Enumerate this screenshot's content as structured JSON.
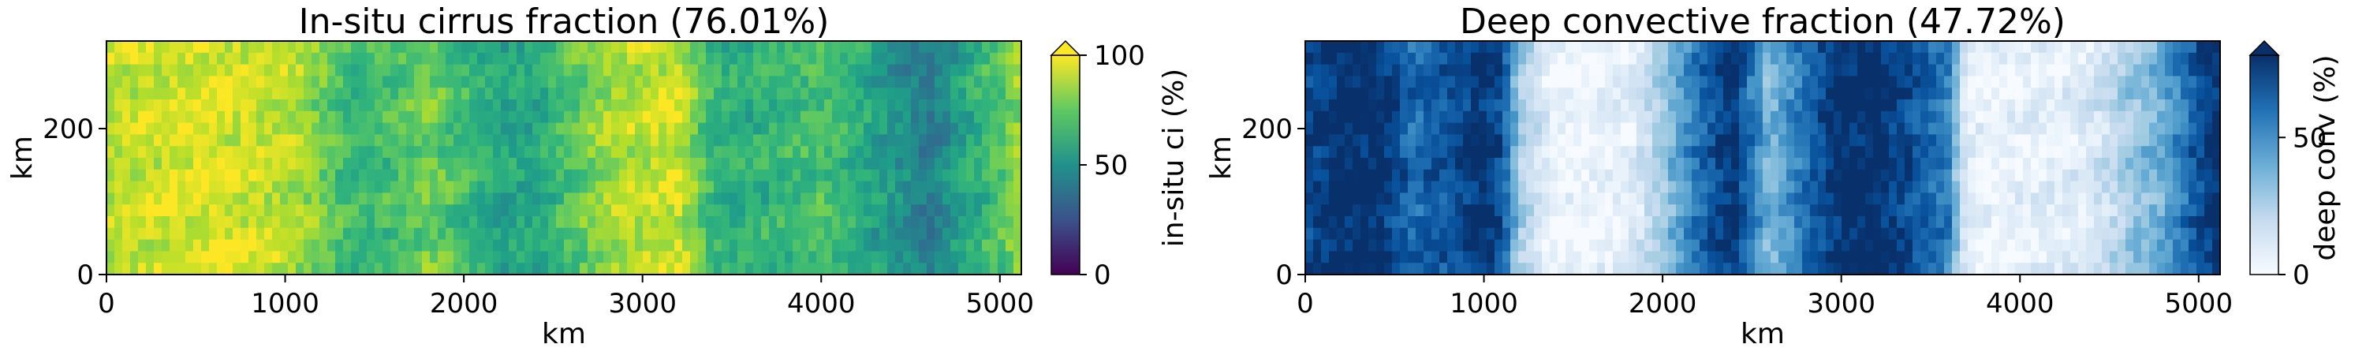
{
  "chart_data": [
    {
      "type": "heatmap",
      "title": "In-situ cirrus fraction (76.01%)",
      "xlabel": "km",
      "ylabel": "km",
      "xlim": [
        0,
        5120
      ],
      "ylim": [
        0,
        320
      ],
      "xticks": [
        0,
        1000,
        2000,
        3000,
        4000,
        5000
      ],
      "yticks": [
        0,
        200
      ],
      "colormap": "viridis",
      "colorbar": {
        "label": "in-situ ci (%)",
        "range": [
          0,
          100
        ],
        "ticks": [
          0,
          50,
          100
        ],
        "extend": "max"
      },
      "column_profile": {
        "x": [
          0,
          200,
          400,
          600,
          800,
          1000,
          1200,
          1400,
          1600,
          1800,
          2000,
          2200,
          2400,
          2600,
          2800,
          3000,
          3200,
          3400,
          3600,
          3800,
          4000,
          4200,
          4400,
          4600,
          4800,
          5000,
          5120
        ],
        "values": [
          88,
          92,
          95,
          95,
          93,
          90,
          80,
          65,
          70,
          78,
          68,
          58,
          60,
          72,
          86,
          90,
          92,
          65,
          62,
          66,
          72,
          62,
          52,
          42,
          58,
          72,
          85
        ]
      }
    },
    {
      "type": "heatmap",
      "title": "Deep convective fraction (47.72%)",
      "xlabel": "km",
      "ylabel": "km",
      "xlim": [
        0,
        5120
      ],
      "ylim": [
        0,
        320
      ],
      "xticks": [
        0,
        1000,
        2000,
        3000,
        4000,
        5000
      ],
      "yticks": [
        0,
        200
      ],
      "colormap": "Blues",
      "colorbar": {
        "label": "deep conv (%)",
        "range": [
          0,
          80
        ],
        "ticks": [
          0,
          50
        ],
        "extend": "max"
      },
      "column_profile": {
        "x": [
          0,
          200,
          400,
          600,
          800,
          1000,
          1100,
          1200,
          1400,
          1600,
          1800,
          2000,
          2200,
          2400,
          2600,
          2800,
          3000,
          3200,
          3400,
          3600,
          3700,
          3800,
          4000,
          4200,
          4400,
          4600,
          4800,
          5000,
          5120
        ],
        "values": [
          72,
          82,
          82,
          62,
          70,
          80,
          70,
          28,
          4,
          3,
          6,
          30,
          60,
          80,
          35,
          62,
          82,
          82,
          70,
          55,
          8,
          4,
          6,
          8,
          12,
          28,
          42,
          70,
          80
        ]
      }
    }
  ]
}
